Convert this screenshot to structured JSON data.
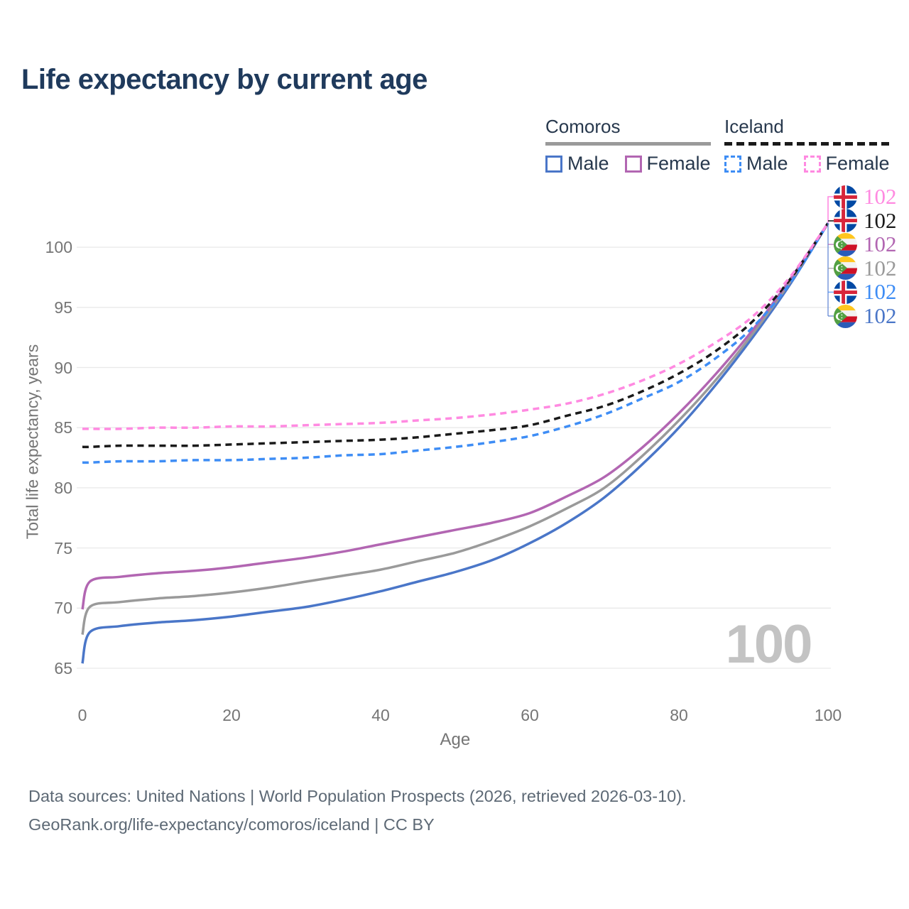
{
  "title": "Life expectancy by current age",
  "legend": {
    "groups": [
      {
        "name": "Comoros",
        "line_style": "solid",
        "underline_color": "#9a9a9a",
        "items": [
          {
            "label": "Male",
            "color": "#4a76c8",
            "dashed": false
          },
          {
            "label": "Female",
            "color": "#b266b2",
            "dashed": false
          }
        ]
      },
      {
        "name": "Iceland",
        "line_style": "dashed",
        "underline_color": "#1a1a1a",
        "items": [
          {
            "label": "Male",
            "color": "#3e8df5",
            "dashed": true
          },
          {
            "label": "Female",
            "color": "#ff8ae1",
            "dashed": true
          }
        ]
      }
    ]
  },
  "chart_data": {
    "type": "line",
    "title": "Life expectancy by current age",
    "xlabel": "Age",
    "ylabel": "Total life expectancy, years",
    "x_ticks": [
      0,
      20,
      40,
      60,
      80,
      100
    ],
    "y_ticks": [
      65,
      70,
      75,
      80,
      85,
      90,
      95,
      100
    ],
    "xlim": [
      0,
      100
    ],
    "ylim": [
      64,
      103
    ],
    "grid": true,
    "x": [
      0,
      1,
      5,
      10,
      15,
      20,
      25,
      30,
      35,
      40,
      45,
      50,
      55,
      60,
      65,
      70,
      75,
      80,
      85,
      90,
      95,
      100
    ],
    "series": [
      {
        "name": "Iceland Female",
        "country": "Iceland",
        "sex": "Female",
        "color": "#ff8ae1",
        "dashed": true,
        "flag": "iceland",
        "end_label": "102",
        "values": [
          84.9,
          84.9,
          84.9,
          85.0,
          85.0,
          85.1,
          85.1,
          85.2,
          85.3,
          85.4,
          85.6,
          85.8,
          86.1,
          86.5,
          87.0,
          87.8,
          88.9,
          90.3,
          92.1,
          94.3,
          97.6,
          102
        ]
      },
      {
        "name": "Iceland Both sexes",
        "country": "Iceland",
        "sex": "Both",
        "color": "#1a1a1a",
        "dashed": true,
        "flag": "iceland",
        "end_label": "102",
        "values": [
          83.4,
          83.4,
          83.5,
          83.5,
          83.5,
          83.6,
          83.7,
          83.8,
          83.9,
          84.0,
          84.2,
          84.5,
          84.8,
          85.2,
          86.0,
          86.8,
          88.0,
          89.5,
          91.4,
          93.9,
          97.4,
          102
        ]
      },
      {
        "name": "Comoros Female",
        "country": "Comoros",
        "sex": "Female",
        "color": "#b266b2",
        "dashed": false,
        "flag": "comoros",
        "end_label": "102",
        "values": [
          69.9,
          72.2,
          72.6,
          72.9,
          73.1,
          73.4,
          73.8,
          74.2,
          74.7,
          75.3,
          75.9,
          76.5,
          77.1,
          77.9,
          79.3,
          80.9,
          83.3,
          86.2,
          89.5,
          93.2,
          97.4,
          102
        ]
      },
      {
        "name": "Comoros Both sexes",
        "country": "Comoros",
        "sex": "Both",
        "color": "#9a9a9a",
        "dashed": false,
        "flag": "comoros",
        "end_label": "102",
        "values": [
          67.8,
          70.1,
          70.5,
          70.8,
          71.0,
          71.3,
          71.7,
          72.2,
          72.7,
          73.2,
          73.9,
          74.6,
          75.6,
          76.8,
          78.3,
          80.0,
          82.6,
          85.6,
          89.0,
          92.9,
          97.2,
          102
        ]
      },
      {
        "name": "Iceland Male",
        "country": "Iceland",
        "sex": "Male",
        "color": "#3e8df5",
        "dashed": true,
        "flag": "iceland",
        "end_label": "102",
        "values": [
          82.1,
          82.1,
          82.2,
          82.2,
          82.3,
          82.3,
          82.4,
          82.5,
          82.7,
          82.8,
          83.1,
          83.4,
          83.8,
          84.3,
          85.1,
          86.1,
          87.4,
          88.8,
          90.8,
          93.4,
          97.1,
          102
        ]
      },
      {
        "name": "Comoros Male",
        "country": "Comoros",
        "sex": "Male",
        "color": "#4a76c8",
        "dashed": false,
        "flag": "comoros",
        "end_label": "102",
        "values": [
          65.4,
          68.0,
          68.5,
          68.8,
          69.0,
          69.3,
          69.7,
          70.1,
          70.7,
          71.4,
          72.2,
          73.0,
          74.0,
          75.4,
          77.1,
          79.2,
          81.9,
          85.0,
          88.6,
          92.6,
          97.0,
          102
        ]
      }
    ],
    "legend_position": "top-right",
    "watermark": "100"
  },
  "colors": {
    "title": "#1f3a5c",
    "axis_text": "#757575",
    "gridline": "#e9e9e9",
    "watermark": "#c3c3c3",
    "footer_text": "#5d6975",
    "legend_text": "#27384d"
  },
  "footer": {
    "line1": "Data sources: United Nations | World Population Prospects (2026, retrieved 2026-03-10).",
    "line2": "GeoRank.org/life-expectancy/comoros/iceland | CC BY"
  }
}
